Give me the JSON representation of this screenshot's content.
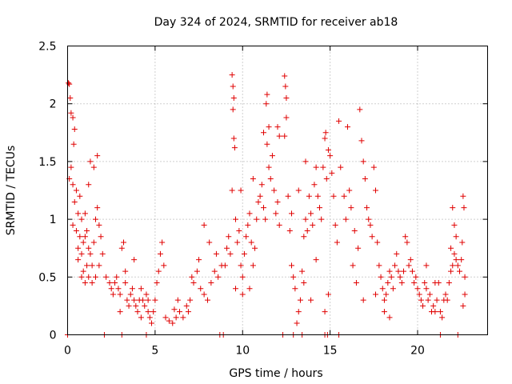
{
  "chart_data": {
    "type": "scatter",
    "title": "Day 324 of 2024, SRMTID for receiver ab18",
    "xlabel": "GPS time / hours",
    "ylabel": "SRMTID / TECUs",
    "xlim": [
      0,
      24
    ],
    "ylim": [
      0,
      2.5
    ],
    "xticks": [
      0,
      5,
      10,
      15,
      20
    ],
    "xtick_labels": [
      "0",
      "5",
      "10",
      "15",
      "20"
    ],
    "yticks": [
      0,
      0.5,
      1,
      1.5,
      2,
      2.5
    ],
    "ytick_labels": [
      "0",
      "0.5",
      "1",
      "1.5",
      "2",
      "2.5"
    ],
    "grid": true,
    "marker": "+",
    "color": "#e00000",
    "series": [
      {
        "name": "ab18",
        "points": [
          [
            0.05,
            2.18
          ],
          [
            0.1,
            2.17
          ],
          [
            0.15,
            2.05
          ],
          [
            0.2,
            1.92
          ],
          [
            0.3,
            1.88
          ],
          [
            0.4,
            1.78
          ],
          [
            0.35,
            1.65
          ],
          [
            0.2,
            1.45
          ],
          [
            0.1,
            1.35
          ],
          [
            0.3,
            1.3
          ],
          [
            0.5,
            1.25
          ],
          [
            0.4,
            1.15
          ],
          [
            0.6,
            1.05
          ],
          [
            0.3,
            0.95
          ],
          [
            0.5,
            0.9
          ],
          [
            0.7,
            0.85
          ],
          [
            0.6,
            0.75
          ],
          [
            0.8,
            0.7
          ],
          [
            0.9,
            0.8
          ],
          [
            1.0,
            0.85
          ],
          [
            1.1,
            0.9
          ],
          [
            1.2,
            0.75
          ],
          [
            1.3,
            0.7
          ],
          [
            1.1,
            0.6
          ],
          [
            0.9,
            0.55
          ],
          [
            0.8,
            0.5
          ],
          [
            1.0,
            0.45
          ],
          [
            1.2,
            0.5
          ],
          [
            1.4,
            0.6
          ],
          [
            1.5,
            0.8
          ],
          [
            1.6,
            1.0
          ],
          [
            1.7,
            1.1
          ],
          [
            1.8,
            0.95
          ],
          [
            1.9,
            0.85
          ],
          [
            2.0,
            0.7
          ],
          [
            1.8,
            0.6
          ],
          [
            1.6,
            0.5
          ],
          [
            1.4,
            0.45
          ],
          [
            1.3,
            1.5
          ],
          [
            1.5,
            1.45
          ],
          [
            1.7,
            1.55
          ],
          [
            1.2,
            1.3
          ],
          [
            0.7,
            1.2
          ],
          [
            0.8,
            1.0
          ],
          [
            1.0,
            1.05
          ],
          [
            0.6,
            0.65
          ],
          [
            2.2,
            0.5
          ],
          [
            2.4,
            0.45
          ],
          [
            2.5,
            0.4
          ],
          [
            2.6,
            0.35
          ],
          [
            2.7,
            0.45
          ],
          [
            2.8,
            0.5
          ],
          [
            2.9,
            0.4
          ],
          [
            3.0,
            0.35
          ],
          [
            3.1,
            0.75
          ],
          [
            3.2,
            0.8
          ],
          [
            3.3,
            0.45
          ],
          [
            3.4,
            0.3
          ],
          [
            3.5,
            0.25
          ],
          [
            3.6,
            0.35
          ],
          [
            3.7,
            0.4
          ],
          [
            3.8,
            0.3
          ],
          [
            3.9,
            0.25
          ],
          [
            4.0,
            0.2
          ],
          [
            4.1,
            0.3
          ],
          [
            4.2,
            0.4
          ],
          [
            4.3,
            0.3
          ],
          [
            4.4,
            0.25
          ],
          [
            4.5,
            0.35
          ],
          [
            4.6,
            0.2
          ],
          [
            4.7,
            0.15
          ],
          [
            4.8,
            0.1
          ],
          [
            4.9,
            0.2
          ],
          [
            5.0,
            0.3
          ],
          [
            5.1,
            0.45
          ],
          [
            5.2,
            0.55
          ],
          [
            5.3,
            0.7
          ],
          [
            5.4,
            0.8
          ],
          [
            5.5,
            0.6
          ],
          [
            3.0,
            0.2
          ],
          [
            3.3,
            0.55
          ],
          [
            3.8,
            0.65
          ],
          [
            4.2,
            0.15
          ],
          [
            4.6,
            0.3
          ],
          [
            5.6,
            0.15
          ],
          [
            5.8,
            0.12
          ],
          [
            6.0,
            0.1
          ],
          [
            6.2,
            0.15
          ],
          [
            6.4,
            0.2
          ],
          [
            6.6,
            0.15
          ],
          [
            6.8,
            0.25
          ],
          [
            7.0,
            0.3
          ],
          [
            7.2,
            0.45
          ],
          [
            7.4,
            0.55
          ],
          [
            7.6,
            0.4
          ],
          [
            7.8,
            0.35
          ],
          [
            8.0,
            0.3
          ],
          [
            8.2,
            0.45
          ],
          [
            8.4,
            0.55
          ],
          [
            8.6,
            0.5
          ],
          [
            8.8,
            0.6
          ],
          [
            6.3,
            0.3
          ],
          [
            6.9,
            0.2
          ],
          [
            7.5,
            0.65
          ],
          [
            7.8,
            0.95
          ],
          [
            8.1,
            0.8
          ],
          [
            8.5,
            0.7
          ],
          [
            6.1,
            0.22
          ],
          [
            7.1,
            0.5
          ],
          [
            9.0,
            0.6
          ],
          [
            9.1,
            0.75
          ],
          [
            9.2,
            0.85
          ],
          [
            9.3,
            0.7
          ],
          [
            9.4,
            2.25
          ],
          [
            9.45,
            2.15
          ],
          [
            9.5,
            2.05
          ],
          [
            9.45,
            1.95
          ],
          [
            9.5,
            1.7
          ],
          [
            9.55,
            1.62
          ],
          [
            9.4,
            1.25
          ],
          [
            9.6,
            1.0
          ],
          [
            9.7,
            0.8
          ],
          [
            9.8,
            0.9
          ],
          [
            9.9,
            0.6
          ],
          [
            10.0,
            0.5
          ],
          [
            10.1,
            0.7
          ],
          [
            10.2,
            0.85
          ],
          [
            10.3,
            0.95
          ],
          [
            10.4,
            1.05
          ],
          [
            10.5,
            0.8
          ],
          [
            10.6,
            0.6
          ],
          [
            10.7,
            0.75
          ],
          [
            10.8,
            1.0
          ],
          [
            10.9,
            1.15
          ],
          [
            11.0,
            1.2
          ],
          [
            11.1,
            1.3
          ],
          [
            11.2,
            1.1
          ],
          [
            11.3,
            1.0
          ],
          [
            11.4,
            1.65
          ],
          [
            11.5,
            1.45
          ],
          [
            11.6,
            1.35
          ],
          [
            11.7,
            1.55
          ],
          [
            11.8,
            1.25
          ],
          [
            11.9,
            1.05
          ],
          [
            12.0,
            1.15
          ],
          [
            12.1,
            0.95
          ],
          [
            11.35,
            2.0
          ],
          [
            11.4,
            2.08
          ],
          [
            11.5,
            1.8
          ],
          [
            11.2,
            1.75
          ],
          [
            10.0,
            0.35
          ],
          [
            10.4,
            0.4
          ],
          [
            9.6,
            0.4
          ],
          [
            9.9,
            1.25
          ],
          [
            10.6,
            1.35
          ],
          [
            12.0,
            1.8
          ],
          [
            12.1,
            1.72
          ],
          [
            12.4,
            2.24
          ],
          [
            12.45,
            2.15
          ],
          [
            12.5,
            2.05
          ],
          [
            12.5,
            1.88
          ],
          [
            12.4,
            1.72
          ],
          [
            12.6,
            1.2
          ],
          [
            12.7,
            0.9
          ],
          [
            12.8,
            0.6
          ],
          [
            12.9,
            0.5
          ],
          [
            13.0,
            0.4
          ],
          [
            13.1,
            0.1
          ],
          [
            13.2,
            0.2
          ],
          [
            13.3,
            0.3
          ],
          [
            13.4,
            0.55
          ],
          [
            13.5,
            0.85
          ],
          [
            13.6,
            1.0
          ],
          [
            13.7,
            0.9
          ],
          [
            13.8,
            1.2
          ],
          [
            13.9,
            1.05
          ],
          [
            14.0,
            0.95
          ],
          [
            14.1,
            1.3
          ],
          [
            14.2,
            1.45
          ],
          [
            14.3,
            1.2
          ],
          [
            14.4,
            1.1
          ],
          [
            14.5,
            1.0
          ],
          [
            14.6,
            1.45
          ],
          [
            14.7,
            1.7
          ],
          [
            14.75,
            1.75
          ],
          [
            14.8,
            1.35
          ],
          [
            14.9,
            1.6
          ],
          [
            15.0,
            1.55
          ],
          [
            15.1,
            1.4
          ],
          [
            15.2,
            1.2
          ],
          [
            15.3,
            0.95
          ],
          [
            15.4,
            0.8
          ],
          [
            15.5,
            1.85
          ],
          [
            15.6,
            1.45
          ],
          [
            15.8,
            1.2
          ],
          [
            15.9,
            1.0
          ],
          [
            14.7,
            0.2
          ],
          [
            14.9,
            0.35
          ],
          [
            13.5,
            0.45
          ],
          [
            13.9,
            0.3
          ],
          [
            14.2,
            0.65
          ],
          [
            12.8,
            1.05
          ],
          [
            13.2,
            1.25
          ],
          [
            13.6,
            1.5
          ],
          [
            16.0,
            1.8
          ],
          [
            16.1,
            1.25
          ],
          [
            16.2,
            1.1
          ],
          [
            16.4,
            0.9
          ],
          [
            16.6,
            0.75
          ],
          [
            16.7,
            1.95
          ],
          [
            16.8,
            1.68
          ],
          [
            16.9,
            1.5
          ],
          [
            17.0,
            1.35
          ],
          [
            17.1,
            1.1
          ],
          [
            17.2,
            1.0
          ],
          [
            17.3,
            0.95
          ],
          [
            17.4,
            0.85
          ],
          [
            17.5,
            1.45
          ],
          [
            17.6,
            1.25
          ],
          [
            17.7,
            0.8
          ],
          [
            17.8,
            0.6
          ],
          [
            17.9,
            0.5
          ],
          [
            18.0,
            0.4
          ],
          [
            18.1,
            0.3
          ],
          [
            18.2,
            0.35
          ],
          [
            18.3,
            0.45
          ],
          [
            18.4,
            0.55
          ],
          [
            18.5,
            0.5
          ],
          [
            18.6,
            0.4
          ],
          [
            18.7,
            0.6
          ],
          [
            18.8,
            0.7
          ],
          [
            18.9,
            0.55
          ],
          [
            19.0,
            0.5
          ],
          [
            19.1,
            0.45
          ],
          [
            19.2,
            0.55
          ],
          [
            19.3,
            0.85
          ],
          [
            19.4,
            0.8
          ],
          [
            19.5,
            0.6
          ],
          [
            19.6,
            0.65
          ],
          [
            19.7,
            0.55
          ],
          [
            19.8,
            0.45
          ],
          [
            19.9,
            0.5
          ],
          [
            20.0,
            0.4
          ],
          [
            16.5,
            0.45
          ],
          [
            16.9,
            0.3
          ],
          [
            17.6,
            0.35
          ],
          [
            18.4,
            0.15
          ],
          [
            18.1,
            0.2
          ],
          [
            16.3,
            0.6
          ],
          [
            20.1,
            0.35
          ],
          [
            20.2,
            0.3
          ],
          [
            20.3,
            0.25
          ],
          [
            20.4,
            0.45
          ],
          [
            20.5,
            0.4
          ],
          [
            20.6,
            0.3
          ],
          [
            20.7,
            0.35
          ],
          [
            20.8,
            0.2
          ],
          [
            20.9,
            0.25
          ],
          [
            21.0,
            0.2
          ],
          [
            21.1,
            0.3
          ],
          [
            21.2,
            0.45
          ],
          [
            21.3,
            0.2
          ],
          [
            21.4,
            0.15
          ],
          [
            21.5,
            0.3
          ],
          [
            21.6,
            0.35
          ],
          [
            21.7,
            0.3
          ],
          [
            21.8,
            0.45
          ],
          [
            21.9,
            0.55
          ],
          [
            22.0,
            0.6
          ],
          [
            22.1,
            0.7
          ],
          [
            22.2,
            0.65
          ],
          [
            22.3,
            0.6
          ],
          [
            22.4,
            0.55
          ],
          [
            22.5,
            0.65
          ],
          [
            22.55,
            0.8
          ],
          [
            22.6,
            1.2
          ],
          [
            22.65,
            1.1
          ],
          [
            22.7,
            0.5
          ],
          [
            22.7,
            0.35
          ],
          [
            22.6,
            0.25
          ],
          [
            22.0,
            1.1
          ],
          [
            22.1,
            0.95
          ],
          [
            21.9,
            0.75
          ],
          [
            22.2,
            0.85
          ],
          [
            21.0,
            0.45
          ],
          [
            20.5,
            0.6
          ],
          [
            0.0,
            0.0
          ],
          [
            2.1,
            0.0
          ],
          [
            3.1,
            0.0
          ],
          [
            4.5,
            0.0
          ],
          [
            8.7,
            0.0
          ],
          [
            8.9,
            0.0
          ],
          [
            12.3,
            0.0
          ],
          [
            12.9,
            0.0
          ],
          [
            13.4,
            0.0
          ],
          [
            14.7,
            0.0
          ],
          [
            14.85,
            0.0
          ],
          [
            15.5,
            0.0
          ],
          [
            21.3,
            0.0
          ],
          [
            22.3,
            0.0
          ]
        ]
      }
    ]
  }
}
